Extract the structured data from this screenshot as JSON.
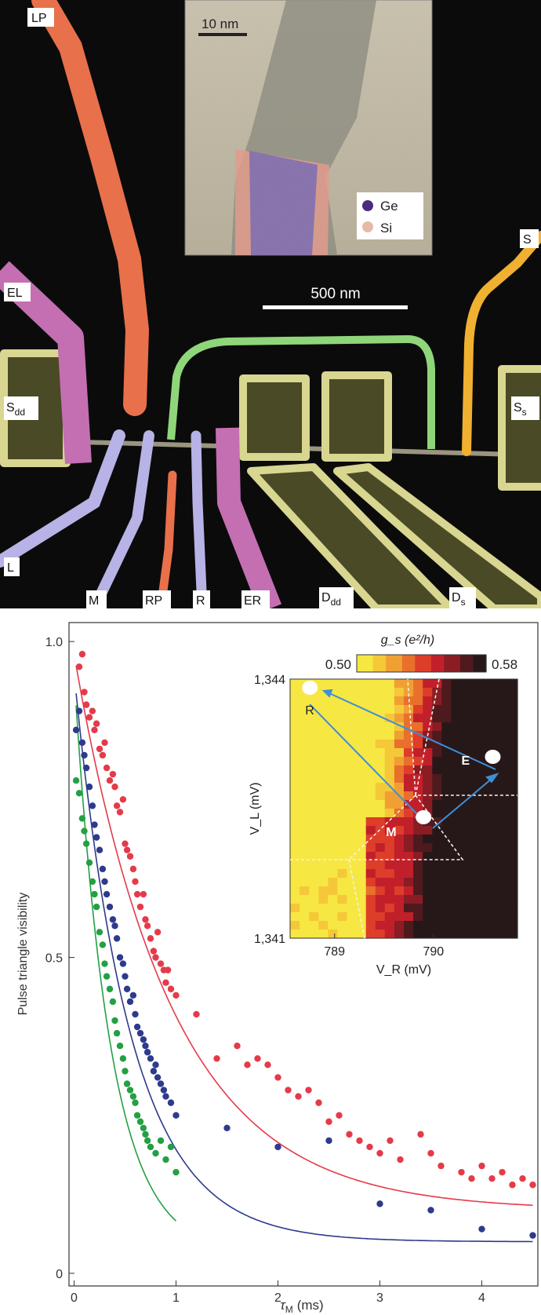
{
  "micrograph": {
    "gate_labels": {
      "LP": "LP",
      "EL": "EL",
      "Sdd_main": "S",
      "Sdd_sub": "dd",
      "L": "L",
      "M": "M",
      "RP": "RP",
      "R": "R",
      "ER": "ER",
      "Ddd_main": "D",
      "Ddd_sub": "dd",
      "Ds_main": "D",
      "Ds_sub": "s",
      "S": "S",
      "Ss_main": "S",
      "Ss_sub": "s"
    },
    "scalebar_label": "500 nm",
    "inset": {
      "scalebar_label": "10 nm",
      "legend": [
        {
          "label": "Ge",
          "color": "#4b2b7f"
        },
        {
          "label": "Si",
          "color": "#e8b9a8"
        }
      ]
    },
    "colors": {
      "LP": "#e8704a",
      "RP": "#e8704a",
      "EL": "#c46fb2",
      "ER": "#c46fb2",
      "L": "#b7b3e6",
      "M": "#b7b3e6",
      "R": "#b7b3e6",
      "yellow_gates": "#d8d690",
      "green_gate": "#8fd67a",
      "orange_gate": "#f0b030"
    }
  },
  "chart_data": {
    "type": "scatter",
    "xlabel_main": "τ",
    "xlabel_sub": "M",
    "xlabel_unit": "(ms)",
    "ylabel": "Pulse triangle visibility",
    "xlim": [
      -0.05,
      4.55
    ],
    "ylim": [
      -0.02,
      1.03
    ],
    "xticks": [
      "0",
      "1",
      "2",
      "3",
      "4"
    ],
    "yticks": [
      "0",
      "0.5",
      "1.0"
    ],
    "grid": false,
    "series": [
      {
        "color": "#e53a4a",
        "fit": {
          "A": 0.88,
          "tau": 0.95,
          "offset": 0.1
        },
        "points": [
          [
            0.05,
            0.96
          ],
          [
            0.08,
            0.98
          ],
          [
            0.1,
            0.92
          ],
          [
            0.12,
            0.9
          ],
          [
            0.15,
            0.88
          ],
          [
            0.18,
            0.89
          ],
          [
            0.2,
            0.86
          ],
          [
            0.22,
            0.87
          ],
          [
            0.25,
            0.83
          ],
          [
            0.28,
            0.82
          ],
          [
            0.3,
            0.84
          ],
          [
            0.32,
            0.8
          ],
          [
            0.35,
            0.78
          ],
          [
            0.38,
            0.79
          ],
          [
            0.4,
            0.77
          ],
          [
            0.42,
            0.74
          ],
          [
            0.45,
            0.73
          ],
          [
            0.48,
            0.75
          ],
          [
            0.5,
            0.68
          ],
          [
            0.52,
            0.67
          ],
          [
            0.55,
            0.66
          ],
          [
            0.58,
            0.64
          ],
          [
            0.6,
            0.62
          ],
          [
            0.62,
            0.6
          ],
          [
            0.65,
            0.58
          ],
          [
            0.68,
            0.6
          ],
          [
            0.7,
            0.56
          ],
          [
            0.72,
            0.55
          ],
          [
            0.75,
            0.53
          ],
          [
            0.78,
            0.51
          ],
          [
            0.8,
            0.5
          ],
          [
            0.82,
            0.54
          ],
          [
            0.85,
            0.49
          ],
          [
            0.88,
            0.48
          ],
          [
            0.9,
            0.46
          ],
          [
            0.92,
            0.48
          ],
          [
            0.95,
            0.45
          ],
          [
            1.0,
            0.44
          ],
          [
            1.2,
            0.41
          ],
          [
            1.4,
            0.34
          ],
          [
            1.6,
            0.36
          ],
          [
            1.7,
            0.33
          ],
          [
            1.8,
            0.34
          ],
          [
            1.9,
            0.33
          ],
          [
            2.0,
            0.31
          ],
          [
            2.1,
            0.29
          ],
          [
            2.2,
            0.28
          ],
          [
            2.3,
            0.29
          ],
          [
            2.4,
            0.27
          ],
          [
            2.5,
            0.24
          ],
          [
            2.6,
            0.25
          ],
          [
            2.7,
            0.22
          ],
          [
            2.8,
            0.21
          ],
          [
            2.9,
            0.2
          ],
          [
            3.0,
            0.19
          ],
          [
            3.1,
            0.21
          ],
          [
            3.2,
            0.18
          ],
          [
            3.4,
            0.22
          ],
          [
            3.5,
            0.19
          ],
          [
            3.6,
            0.17
          ],
          [
            3.8,
            0.16
          ],
          [
            3.9,
            0.15
          ],
          [
            4.0,
            0.17
          ],
          [
            4.1,
            0.15
          ],
          [
            4.2,
            0.16
          ],
          [
            4.3,
            0.14
          ],
          [
            4.4,
            0.15
          ],
          [
            4.5,
            0.14
          ]
        ]
      },
      {
        "color": "#2e3a8c",
        "fit": {
          "A": 0.9,
          "tau": 0.55,
          "offset": 0.05
        },
        "points": [
          [
            0.02,
            0.86
          ],
          [
            0.05,
            0.89
          ],
          [
            0.08,
            0.84
          ],
          [
            0.1,
            0.82
          ],
          [
            0.12,
            0.8
          ],
          [
            0.15,
            0.77
          ],
          [
            0.18,
            0.74
          ],
          [
            0.2,
            0.71
          ],
          [
            0.22,
            0.69
          ],
          [
            0.25,
            0.67
          ],
          [
            0.28,
            0.64
          ],
          [
            0.3,
            0.62
          ],
          [
            0.32,
            0.6
          ],
          [
            0.35,
            0.58
          ],
          [
            0.38,
            0.56
          ],
          [
            0.4,
            0.55
          ],
          [
            0.42,
            0.53
          ],
          [
            0.45,
            0.5
          ],
          [
            0.48,
            0.49
          ],
          [
            0.5,
            0.47
          ],
          [
            0.52,
            0.45
          ],
          [
            0.55,
            0.43
          ],
          [
            0.58,
            0.44
          ],
          [
            0.6,
            0.41
          ],
          [
            0.62,
            0.39
          ],
          [
            0.65,
            0.38
          ],
          [
            0.68,
            0.37
          ],
          [
            0.7,
            0.36
          ],
          [
            0.72,
            0.35
          ],
          [
            0.75,
            0.34
          ],
          [
            0.78,
            0.32
          ],
          [
            0.8,
            0.33
          ],
          [
            0.82,
            0.31
          ],
          [
            0.85,
            0.3
          ],
          [
            0.88,
            0.29
          ],
          [
            0.9,
            0.28
          ],
          [
            0.95,
            0.27
          ],
          [
            1.0,
            0.25
          ],
          [
            1.5,
            0.23
          ],
          [
            2.0,
            0.2
          ],
          [
            2.5,
            0.21
          ],
          [
            3.0,
            0.11
          ],
          [
            3.5,
            0.1
          ],
          [
            4.0,
            0.07
          ],
          [
            4.5,
            0.06
          ]
        ]
      },
      {
        "color": "#23a043",
        "fit": {
          "A": 0.92,
          "tau": 0.35,
          "offset": 0.03
        },
        "points": [
          [
            0.02,
            0.78
          ],
          [
            0.05,
            0.76
          ],
          [
            0.08,
            0.72
          ],
          [
            0.1,
            0.7
          ],
          [
            0.12,
            0.68
          ],
          [
            0.15,
            0.65
          ],
          [
            0.18,
            0.62
          ],
          [
            0.2,
            0.6
          ],
          [
            0.22,
            0.58
          ],
          [
            0.25,
            0.54
          ],
          [
            0.28,
            0.52
          ],
          [
            0.3,
            0.49
          ],
          [
            0.32,
            0.47
          ],
          [
            0.35,
            0.45
          ],
          [
            0.38,
            0.43
          ],
          [
            0.4,
            0.4
          ],
          [
            0.42,
            0.38
          ],
          [
            0.45,
            0.36
          ],
          [
            0.48,
            0.34
          ],
          [
            0.5,
            0.32
          ],
          [
            0.52,
            0.3
          ],
          [
            0.55,
            0.29
          ],
          [
            0.58,
            0.28
          ],
          [
            0.6,
            0.27
          ],
          [
            0.62,
            0.25
          ],
          [
            0.65,
            0.24
          ],
          [
            0.68,
            0.23
          ],
          [
            0.7,
            0.22
          ],
          [
            0.72,
            0.21
          ],
          [
            0.75,
            0.2
          ],
          [
            0.8,
            0.19
          ],
          [
            0.85,
            0.21
          ],
          [
            0.9,
            0.18
          ],
          [
            0.95,
            0.2
          ],
          [
            1.0,
            0.16
          ]
        ]
      }
    ],
    "inset": {
      "type": "heatmap",
      "colorbar_label": "g_s (e²/h)",
      "colorbar_min": "0.50",
      "colorbar_max": "0.58",
      "xlabel": "V_R (mV)",
      "ylabel": "V_L (mV)",
      "xticks": [
        "789",
        "790"
      ],
      "yticks": [
        "1,344",
        "1,341"
      ],
      "points": [
        {
          "label": "R",
          "vr": 788.75,
          "vl": 1343.9
        },
        {
          "label": "M",
          "vr": 789.9,
          "vl": 1342.4
        },
        {
          "label": "E",
          "vr": 790.6,
          "vl": 1343.1
        }
      ]
    }
  }
}
